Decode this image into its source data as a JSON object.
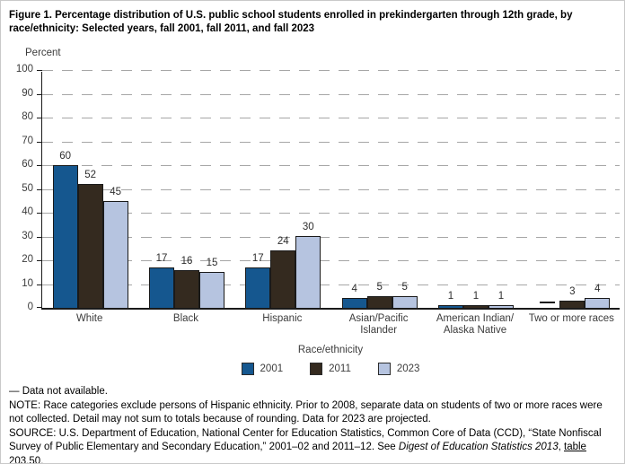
{
  "figure": {
    "title": "Figure 1. Percentage distribution of U.S. public school students enrolled in prekindergarten through 12th grade, by race/ethnicity: Selected years, fall 2001, fall 2011, and fall 2023"
  },
  "chart_data": {
    "type": "bar",
    "title": "Figure 1. Percentage distribution of U.S. public school students enrolled in prekindergarten through 12th grade, by race/ethnicity: Selected years, fall 2001, fall 2011, and fall 2023",
    "ylabel": "Percent",
    "xlabel": "Race/ethnicity",
    "ylim": [
      0,
      100
    ],
    "ytick_interval": 10,
    "grid": "dashed-horizontal",
    "legend_position": "bottom",
    "bar_border_color": "#1a1a1a",
    "categories": [
      "White",
      "Black",
      "Hispanic",
      "Asian/Pacific Islander",
      "American Indian/\nAlaska Native",
      "Two or more races"
    ],
    "series": [
      {
        "name": "2001",
        "color": "#15578F",
        "values": [
          60,
          17,
          17,
          4,
          1,
          null
        ]
      },
      {
        "name": "2011",
        "color": "#342A1F",
        "values": [
          52,
          16,
          24,
          5,
          1,
          3
        ]
      },
      {
        "name": "2023",
        "color": "#B6C4E0",
        "values": [
          45,
          15,
          30,
          5,
          1,
          4
        ]
      }
    ],
    "missing_value_marker": "—"
  },
  "footnotes": {
    "data_not_available": "— Data not available.",
    "note": "NOTE: Race categories exclude persons of Hispanic ethnicity. Prior to 2008, separate data on students of two or more races were not collected. Detail may not sum to totals because of rounding. Data for 2023 are projected.",
    "source_prefix": "SOURCE: U.S. Department of Education, National Center for Education Statistics, Common Core of Data (CCD), “State Nonfiscal Survey of Public Elementary and Secondary Education,” 2001–02 and 2011–12. See ",
    "source_italic": "Digest of Education Statistics 2013",
    "source_mid": ", ",
    "source_link": "table 203.50",
    "source_suffix": "."
  }
}
